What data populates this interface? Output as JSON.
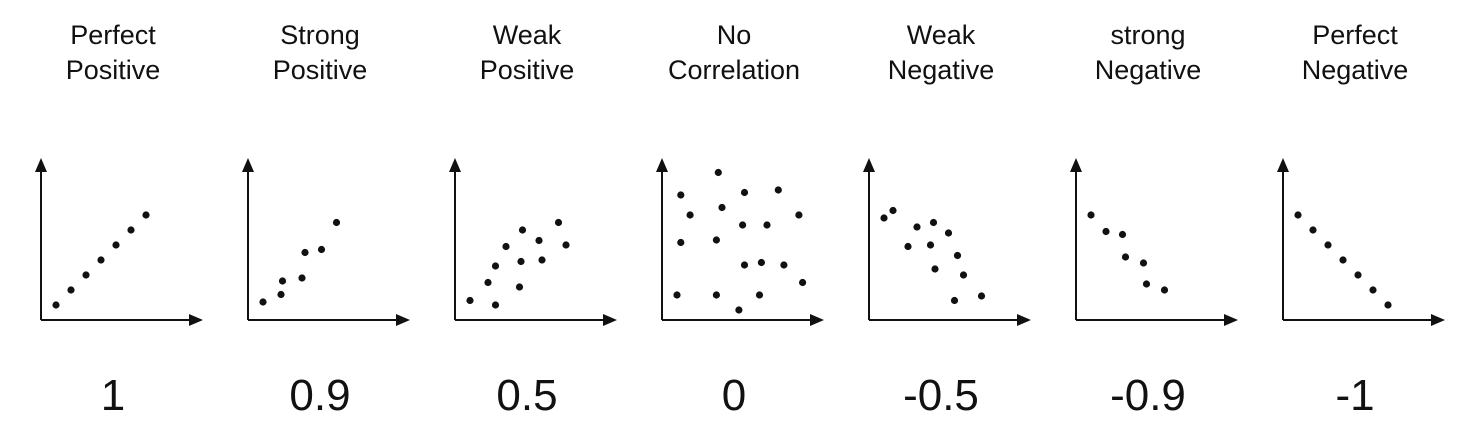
{
  "colors": {
    "ink": "#111111",
    "background": "#ffffff"
  },
  "chart_data": [
    {
      "type": "scatter",
      "title": [
        "Perfect",
        "Positive"
      ],
      "value_label": "1",
      "points": [
        [
          1.0,
          1.0
        ],
        [
          2.0,
          2.0
        ],
        [
          3.0,
          3.0
        ],
        [
          4.0,
          4.0
        ],
        [
          5.0,
          5.0
        ],
        [
          6.0,
          6.0
        ],
        [
          7.0,
          7.0
        ]
      ],
      "xlim": [
        0,
        10
      ],
      "ylim": [
        0,
        10
      ],
      "xlabel": "",
      "ylabel": ""
    },
    {
      "type": "scatter",
      "title": [
        "Strong",
        "Positive"
      ],
      "value_label": "0.9",
      "points": [
        [
          1.0,
          1.2
        ],
        [
          2.2,
          1.7
        ],
        [
          2.3,
          2.6
        ],
        [
          3.6,
          2.8
        ],
        [
          3.8,
          4.5
        ],
        [
          4.9,
          4.7
        ],
        [
          5.9,
          6.5
        ]
      ],
      "xlim": [
        0,
        10
      ],
      "ylim": [
        0,
        10
      ],
      "xlabel": "",
      "ylabel": ""
    },
    {
      "type": "scatter",
      "title": [
        "Weak",
        "Positive"
      ],
      "value_label": "0.5",
      "points": [
        [
          1.0,
          1.3
        ],
        [
          2.7,
          1.0
        ],
        [
          2.2,
          2.5
        ],
        [
          2.7,
          3.6
        ],
        [
          3.4,
          4.9
        ],
        [
          4.3,
          2.2
        ],
        [
          4.4,
          3.9
        ],
        [
          4.5,
          6.0
        ],
        [
          5.6,
          5.3
        ],
        [
          5.8,
          4.0
        ],
        [
          6.9,
          6.5
        ],
        [
          7.4,
          5.0
        ]
      ],
      "xlim": [
        0,
        10
      ],
      "ylim": [
        0,
        10
      ],
      "xlabel": "",
      "ylabel": ""
    },
    {
      "type": "scatter",
      "title": [
        "No",
        "Correlation"
      ],
      "value_label": "0",
      "points": [
        [
          1.0,
          5.0
        ],
        [
          1.0,
          3.1
        ],
        [
          1.5,
          4.2
        ],
        [
          0.8,
          1.0
        ],
        [
          3.0,
          5.9
        ],
        [
          3.2,
          4.5
        ],
        [
          2.9,
          3.2
        ],
        [
          2.9,
          1.0
        ],
        [
          4.4,
          5.1
        ],
        [
          4.1,
          0.4
        ],
        [
          4.3,
          3.8
        ],
        [
          4.4,
          2.2
        ],
        [
          5.6,
          3.8
        ],
        [
          5.3,
          2.3
        ],
        [
          5.2,
          1.0
        ],
        [
          6.2,
          5.2
        ],
        [
          6.5,
          2.2
        ],
        [
          7.3,
          4.2
        ],
        [
          7.5,
          1.5
        ]
      ],
      "xlim": [
        0,
        8
      ],
      "ylim": [
        0,
        6
      ],
      "xlabel": "",
      "ylabel": ""
    },
    {
      "type": "scatter",
      "title": [
        "Weak",
        "Negative"
      ],
      "value_label": "-0.5",
      "points": [
        [
          1.0,
          6.8
        ],
        [
          1.6,
          7.3
        ],
        [
          2.6,
          4.9
        ],
        [
          3.2,
          6.2
        ],
        [
          4.1,
          5.0
        ],
        [
          4.3,
          6.5
        ],
        [
          4.4,
          3.4
        ],
        [
          5.3,
          5.8
        ],
        [
          5.7,
          1.3
        ],
        [
          5.9,
          4.3
        ],
        [
          6.3,
          3.0
        ],
        [
          7.5,
          1.6
        ]
      ],
      "xlim": [
        0,
        10
      ],
      "ylim": [
        0,
        10
      ],
      "xlabel": "",
      "ylabel": ""
    },
    {
      "type": "scatter",
      "title": [
        "strong",
        "Negative"
      ],
      "value_label": "-0.9",
      "points": [
        [
          1.0,
          7.0
        ],
        [
          2.0,
          5.9
        ],
        [
          3.1,
          5.7
        ],
        [
          3.3,
          4.2
        ],
        [
          4.5,
          3.8
        ],
        [
          4.7,
          2.4
        ],
        [
          5.9,
          2.0
        ]
      ],
      "xlim": [
        0,
        10
      ],
      "ylim": [
        0,
        10
      ],
      "xlabel": "",
      "ylabel": ""
    },
    {
      "type": "scatter",
      "title": [
        "Perfect",
        "Negative"
      ],
      "value_label": "-1",
      "points": [
        [
          1.0,
          7.0
        ],
        [
          2.0,
          6.0
        ],
        [
          3.0,
          5.0
        ],
        [
          4.0,
          4.0
        ],
        [
          5.0,
          3.0
        ],
        [
          6.0,
          2.0
        ],
        [
          7.0,
          1.0
        ]
      ],
      "xlim": [
        0,
        10
      ],
      "ylim": [
        0,
        10
      ],
      "xlabel": "",
      "ylabel": ""
    }
  ]
}
